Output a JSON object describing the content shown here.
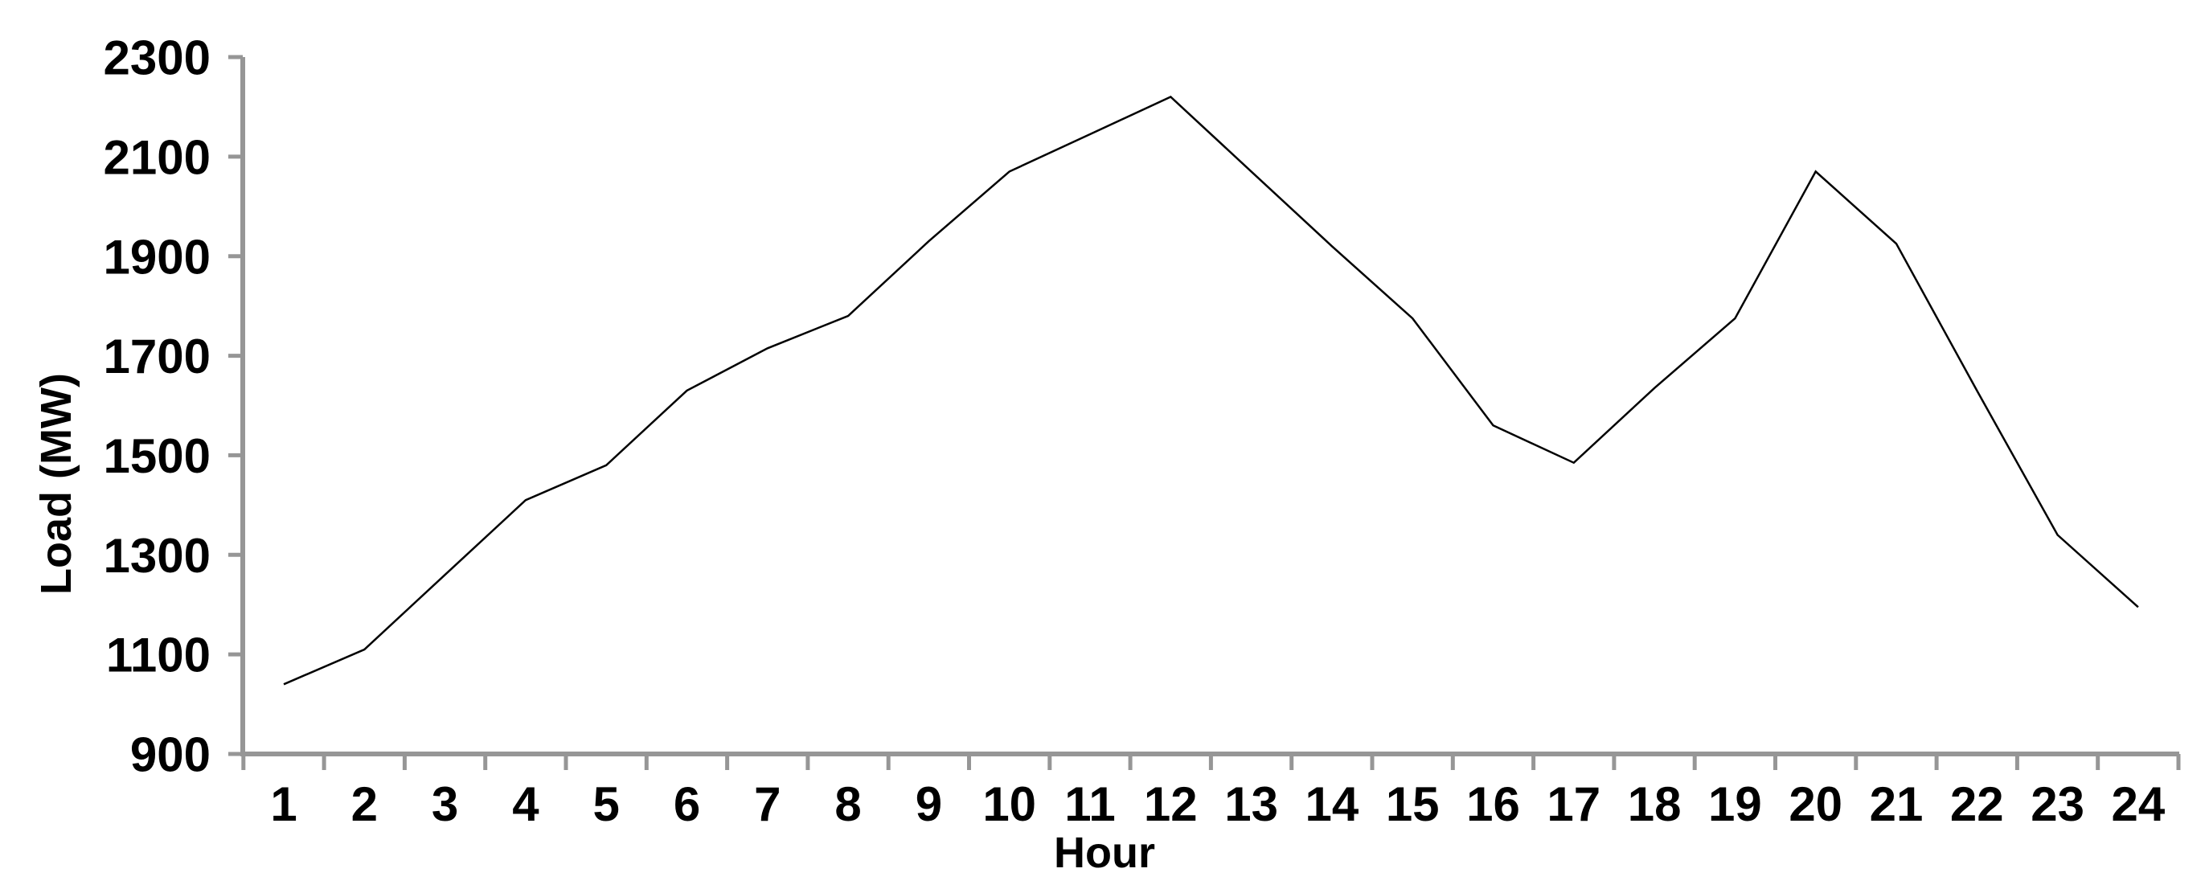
{
  "chart_data": {
    "type": "line",
    "title": "",
    "xlabel": "Hour",
    "ylabel": "Load (MW)",
    "categories": [
      1,
      2,
      3,
      4,
      5,
      6,
      7,
      8,
      9,
      10,
      11,
      12,
      13,
      14,
      15,
      16,
      17,
      18,
      19,
      20,
      21,
      22,
      23,
      24
    ],
    "series": [
      {
        "name": "Load",
        "values": [
          1040,
          1110,
          1260,
          1410,
          1480,
          1630,
          1715,
          1780,
          1930,
          2070,
          2145,
          2220,
          2070,
          1920,
          1775,
          1560,
          1485,
          1635,
          1775,
          2070,
          1925,
          1630,
          1340,
          1195
        ]
      }
    ],
    "ylim": [
      900,
      2300
    ],
    "yticks": [
      900,
      1100,
      1300,
      1500,
      1700,
      1900,
      2100,
      2300
    ],
    "grid": false,
    "legend_position": "none",
    "line_color": "#000000",
    "axis_color": "#969696",
    "text_color": "#000000",
    "background_color": "#ffffff"
  }
}
